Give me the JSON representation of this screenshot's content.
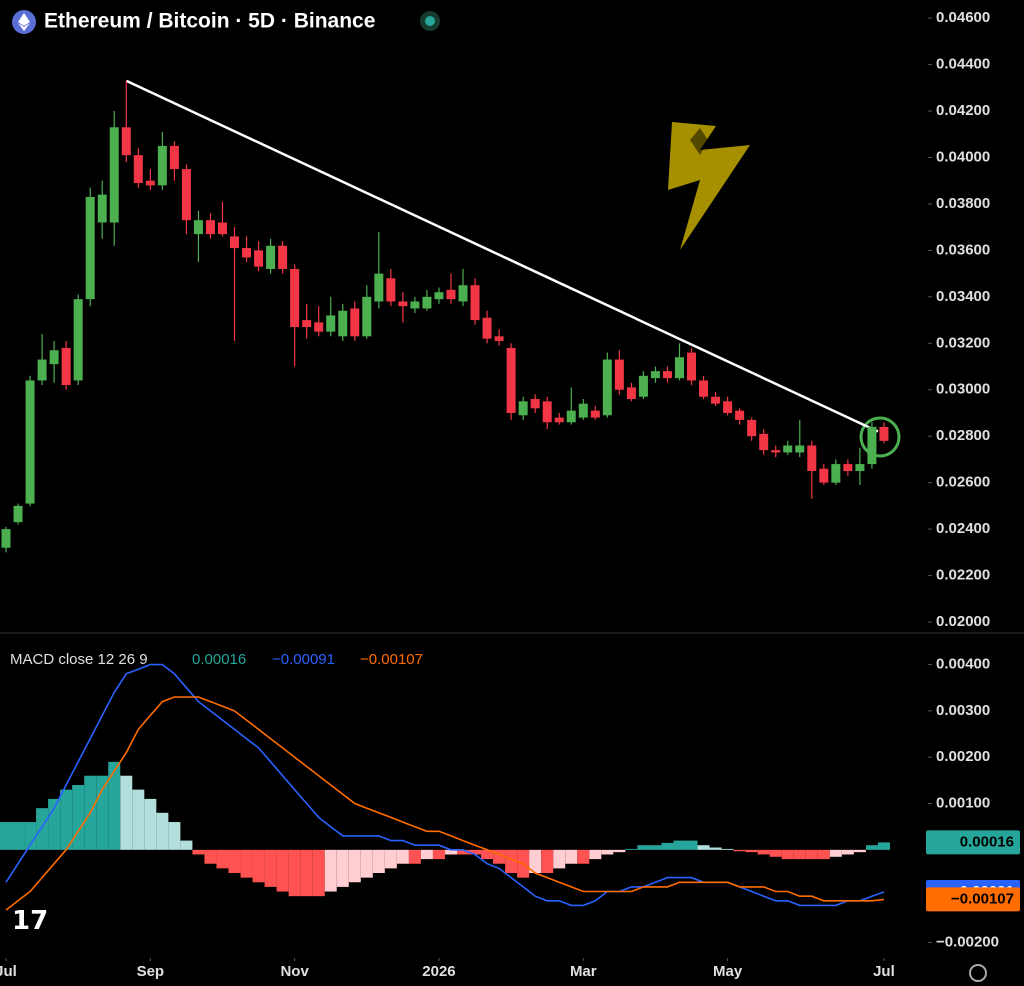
{
  "chart_data": [
    {
      "type": "candlestick",
      "title": "Ethereum / Bitcoin · 5D · Binance",
      "up_color": "#4caf50",
      "down_color": "#f23645",
      "open": [
        0.0232,
        0.0243,
        0.0251,
        0.0304,
        0.0311,
        0.0318,
        0.0304,
        0.0339,
        0.0372,
        0.0372,
        0.0413,
        0.0401,
        0.039,
        0.0388,
        0.0405,
        0.0395,
        0.0367,
        0.0373,
        0.0372,
        0.0366,
        0.0361,
        0.036,
        0.0352,
        0.0362,
        0.0352,
        0.033,
        0.0329,
        0.0325,
        0.0323,
        0.0335,
        0.0323,
        0.0338,
        0.0348,
        0.0338,
        0.0335,
        0.0335,
        0.0339,
        0.0343,
        0.0338,
        0.0345,
        0.0331,
        0.0323,
        0.0318,
        0.0289,
        0.0296,
        0.0295,
        0.0288,
        0.0286,
        0.0288,
        0.0291,
        0.0289,
        0.0313,
        0.0301,
        0.0297,
        0.0305,
        0.0308,
        0.0305,
        0.0316,
        0.0304,
        0.0297,
        0.0295,
        0.0291,
        0.0287,
        0.0281,
        0.0274,
        0.0273,
        0.0273,
        0.0276,
        0.0266,
        0.026,
        0.0268,
        0.0265,
        0.0268,
        0.0284
      ],
      "high": [
        0.0241,
        0.0251,
        0.0306,
        0.0324,
        0.0321,
        0.0321,
        0.0341,
        0.0387,
        0.039,
        0.042,
        0.0433,
        0.0404,
        0.0395,
        0.0411,
        0.0407,
        0.0397,
        0.0377,
        0.0376,
        0.0381,
        0.037,
        0.0366,
        0.0364,
        0.0365,
        0.0364,
        0.0354,
        0.0337,
        0.0336,
        0.034,
        0.0337,
        0.0338,
        0.0345,
        0.0368,
        0.0352,
        0.0342,
        0.034,
        0.0343,
        0.0344,
        0.035,
        0.0352,
        0.0348,
        0.0334,
        0.0326,
        0.032,
        0.0297,
        0.0298,
        0.0297,
        0.029,
        0.0301,
        0.0296,
        0.0293,
        0.0316,
        0.0317,
        0.0303,
        0.0308,
        0.031,
        0.031,
        0.032,
        0.0318,
        0.0306,
        0.0299,
        0.0297,
        0.0292,
        0.0288,
        0.0283,
        0.0276,
        0.0278,
        0.0287,
        0.0278,
        0.0268,
        0.027,
        0.027,
        0.0275,
        0.0286,
        0.0286
      ],
      "low": [
        0.023,
        0.0242,
        0.025,
        0.0302,
        0.0303,
        0.03,
        0.0302,
        0.0336,
        0.0365,
        0.0362,
        0.0398,
        0.0387,
        0.0386,
        0.0386,
        0.039,
        0.0367,
        0.0355,
        0.0365,
        0.0366,
        0.0321,
        0.0355,
        0.0351,
        0.035,
        0.035,
        0.031,
        0.0322,
        0.0323,
        0.0323,
        0.0321,
        0.0321,
        0.0322,
        0.0335,
        0.0336,
        0.0329,
        0.0333,
        0.0334,
        0.0337,
        0.0337,
        0.0336,
        0.0328,
        0.032,
        0.0319,
        0.0287,
        0.0287,
        0.029,
        0.0283,
        0.0285,
        0.0285,
        0.0287,
        0.0287,
        0.0288,
        0.0298,
        0.0295,
        0.0296,
        0.0303,
        0.0303,
        0.0304,
        0.0302,
        0.0296,
        0.0293,
        0.0289,
        0.0285,
        0.0278,
        0.0272,
        0.0271,
        0.0272,
        0.0271,
        0.0253,
        0.0259,
        0.0259,
        0.0263,
        0.0259,
        0.0266,
        0.0277
      ],
      "close": [
        0.024,
        0.025,
        0.0304,
        0.0313,
        0.0317,
        0.0302,
        0.0339,
        0.0383,
        0.0384,
        0.0413,
        0.0401,
        0.0389,
        0.0388,
        0.0405,
        0.0395,
        0.0373,
        0.0373,
        0.0367,
        0.0367,
        0.0361,
        0.0357,
        0.0353,
        0.0362,
        0.0352,
        0.0327,
        0.0327,
        0.0325,
        0.0332,
        0.0334,
        0.0323,
        0.034,
        0.035,
        0.0338,
        0.0336,
        0.0338,
        0.034,
        0.0342,
        0.0339,
        0.0345,
        0.033,
        0.0322,
        0.0321,
        0.029,
        0.0295,
        0.0292,
        0.0286,
        0.0286,
        0.0291,
        0.0294,
        0.0288,
        0.0313,
        0.03,
        0.0296,
        0.0306,
        0.0308,
        0.0305,
        0.0314,
        0.0304,
        0.0297,
        0.0294,
        0.029,
        0.0287,
        0.028,
        0.0274,
        0.0273,
        0.0276,
        0.0276,
        0.0265,
        0.026,
        0.0268,
        0.0265,
        0.0268,
        0.0284,
        0.0278
      ],
      "trendline": {
        "color": "#ffffff",
        "start": [
          10,
          0.0433
        ],
        "end": [
          72.5,
          0.0282
        ]
      },
      "xlim": [
        -0.5,
        75
      ],
      "ylim": [
        0.01957,
        0.04678
      ],
      "yticks": [
        {
          "value": 0.046,
          "label": "0.04600"
        },
        {
          "value": 0.044,
          "label": "0.04400"
        },
        {
          "value": 0.042,
          "label": "0.04200"
        },
        {
          "value": 0.04,
          "label": "0.04000"
        },
        {
          "value": 0.038,
          "label": "0.03800"
        },
        {
          "value": 0.036,
          "label": "0.03600"
        },
        {
          "value": 0.034,
          "label": "0.03400"
        },
        {
          "value": 0.032,
          "label": "0.03200"
        },
        {
          "value": 0.03,
          "label": "0.03000"
        },
        {
          "value": 0.028,
          "label": "0.02800"
        },
        {
          "value": 0.026,
          "label": "0.02600"
        },
        {
          "value": 0.024,
          "label": "0.02400"
        },
        {
          "value": 0.022,
          "label": "0.02200"
        },
        {
          "value": 0.02,
          "label": "0.02000"
        }
      ]
    },
    {
      "type": "macd",
      "title": "MACD close 12 26 9",
      "histogram": {
        "colors": {
          "up_rising": "#26a69a",
          "up_falling": "#b2dfdb",
          "down_falling": "#ff5252",
          "down_rising": "#ffcdd2"
        },
        "values": [
          0.0006,
          0.0006,
          0.0006,
          0.0009,
          0.0011,
          0.0013,
          0.0014,
          0.0016,
          0.0016,
          0.0019,
          0.0016,
          0.0013,
          0.0011,
          0.0008,
          0.0006,
          0.0002,
          -0.0001,
          -0.0003,
          -0.0004,
          -0.0005,
          -0.0006,
          -0.0007,
          -0.0008,
          -0.0009,
          -0.001,
          -0.001,
          -0.001,
          -0.0009,
          -0.0008,
          -0.0007,
          -0.0006,
          -0.0005,
          -0.0004,
          -0.0003,
          -0.0003,
          -0.0002,
          -0.0002,
          -0.0001,
          -0.0001,
          -0.0001,
          -0.0002,
          -0.0003,
          -0.0005,
          -0.0006,
          -0.0005,
          -0.0005,
          -0.0004,
          -0.0003,
          -0.0003,
          -0.0002,
          -0.0001,
          -5e-05,
          2e-05,
          0.0001,
          0.0001,
          0.00015,
          0.0002,
          0.0002,
          0.0001,
          5e-05,
          2e-05,
          -3e-05,
          -5e-05,
          -0.0001,
          -0.00015,
          -0.0002,
          -0.0002,
          -0.0002,
          -0.0002,
          -0.00015,
          -0.0001,
          -5e-05,
          0.0001,
          0.00016
        ],
        "last_label": "0.00016"
      },
      "series": [
        {
          "color": "#2962ff",
          "last_label": "−0.00091",
          "values": [
            -0.0007,
            -0.0003,
            0.0001,
            0.0005,
            0.0009,
            0.0014,
            0.0019,
            0.0024,
            0.0029,
            0.0034,
            0.0038,
            0.0039,
            0.004,
            0.004,
            0.0038,
            0.0035,
            0.0032,
            0.003,
            0.0028,
            0.0026,
            0.0024,
            0.0022,
            0.0019,
            0.0016,
            0.0013,
            0.001,
            0.0007,
            0.0005,
            0.0003,
            0.0003,
            0.0003,
            0.0003,
            0.0002,
            0.0002,
            0.0001,
            0.0001,
            0.0001,
            0,
            0,
            -0.0001,
            -0.0003,
            -0.0004,
            -0.0006,
            -0.0008,
            -0.001,
            -0.0011,
            -0.0011,
            -0.0012,
            -0.0012,
            -0.0011,
            -0.0009,
            -0.0009,
            -0.0008,
            -0.0008,
            -0.0007,
            -0.0006,
            -0.0006,
            -0.0006,
            -0.0007,
            -0.0007,
            -0.0007,
            -0.0008,
            -0.0009,
            -0.001,
            -0.0011,
            -0.0011,
            -0.0012,
            -0.0012,
            -0.0012,
            -0.0012,
            -0.0011,
            -0.0011,
            -0.001,
            -0.00091
          ]
        },
        {
          "color": "#ff6d00",
          "last_label": "−0.00107",
          "values": [
            -0.0013,
            -0.0011,
            -0.0009,
            -0.0006,
            -0.0003,
            0,
            0.0004,
            0.0008,
            0.0013,
            0.0017,
            0.0021,
            0.0026,
            0.0029,
            0.0032,
            0.0033,
            0.0033,
            0.0033,
            0.0032,
            0.0031,
            0.003,
            0.0028,
            0.0026,
            0.0024,
            0.0022,
            0.002,
            0.0018,
            0.0016,
            0.0014,
            0.0012,
            0.001,
            0.0009,
            0.0008,
            0.0007,
            0.0006,
            0.0005,
            0.0004,
            0.0004,
            0.0003,
            0.0002,
            0.0001,
            0,
            -0.0001,
            -0.0002,
            -0.0003,
            -0.0005,
            -0.0006,
            -0.0007,
            -0.0008,
            -0.0009,
            -0.0009,
            -0.0009,
            -0.0009,
            -0.0009,
            -0.0008,
            -0.0008,
            -0.0008,
            -0.0007,
            -0.0007,
            -0.0007,
            -0.0007,
            -0.0007,
            -0.0008,
            -0.0008,
            -0.0008,
            -0.0009,
            -0.0009,
            -0.001,
            -0.001,
            -0.0011,
            -0.0011,
            -0.0011,
            -0.0011,
            -0.0011,
            -0.00107
          ]
        }
      ],
      "xlim": [
        -0.5,
        75
      ],
      "ylim": [
        -0.00227,
        0.00453
      ],
      "yticks": [
        {
          "value": 0.004,
          "label": "0.00400"
        },
        {
          "value": 0.003,
          "label": "0.00300"
        },
        {
          "value": 0.002,
          "label": "0.00200"
        },
        {
          "value": 0.001,
          "label": "0.00100"
        },
        {
          "value": -0.002,
          "label": "−0.00200"
        }
      ],
      "xticks": [
        {
          "value": 0,
          "label": "Jul"
        },
        {
          "value": 12,
          "label": "Sep"
        },
        {
          "value": 24,
          "label": "Nov"
        },
        {
          "value": 36,
          "label": "2026"
        },
        {
          "value": 48,
          "label": "Mar"
        },
        {
          "value": 60,
          "label": "May"
        },
        {
          "value": 73,
          "label": "Jul"
        }
      ]
    }
  ]
}
